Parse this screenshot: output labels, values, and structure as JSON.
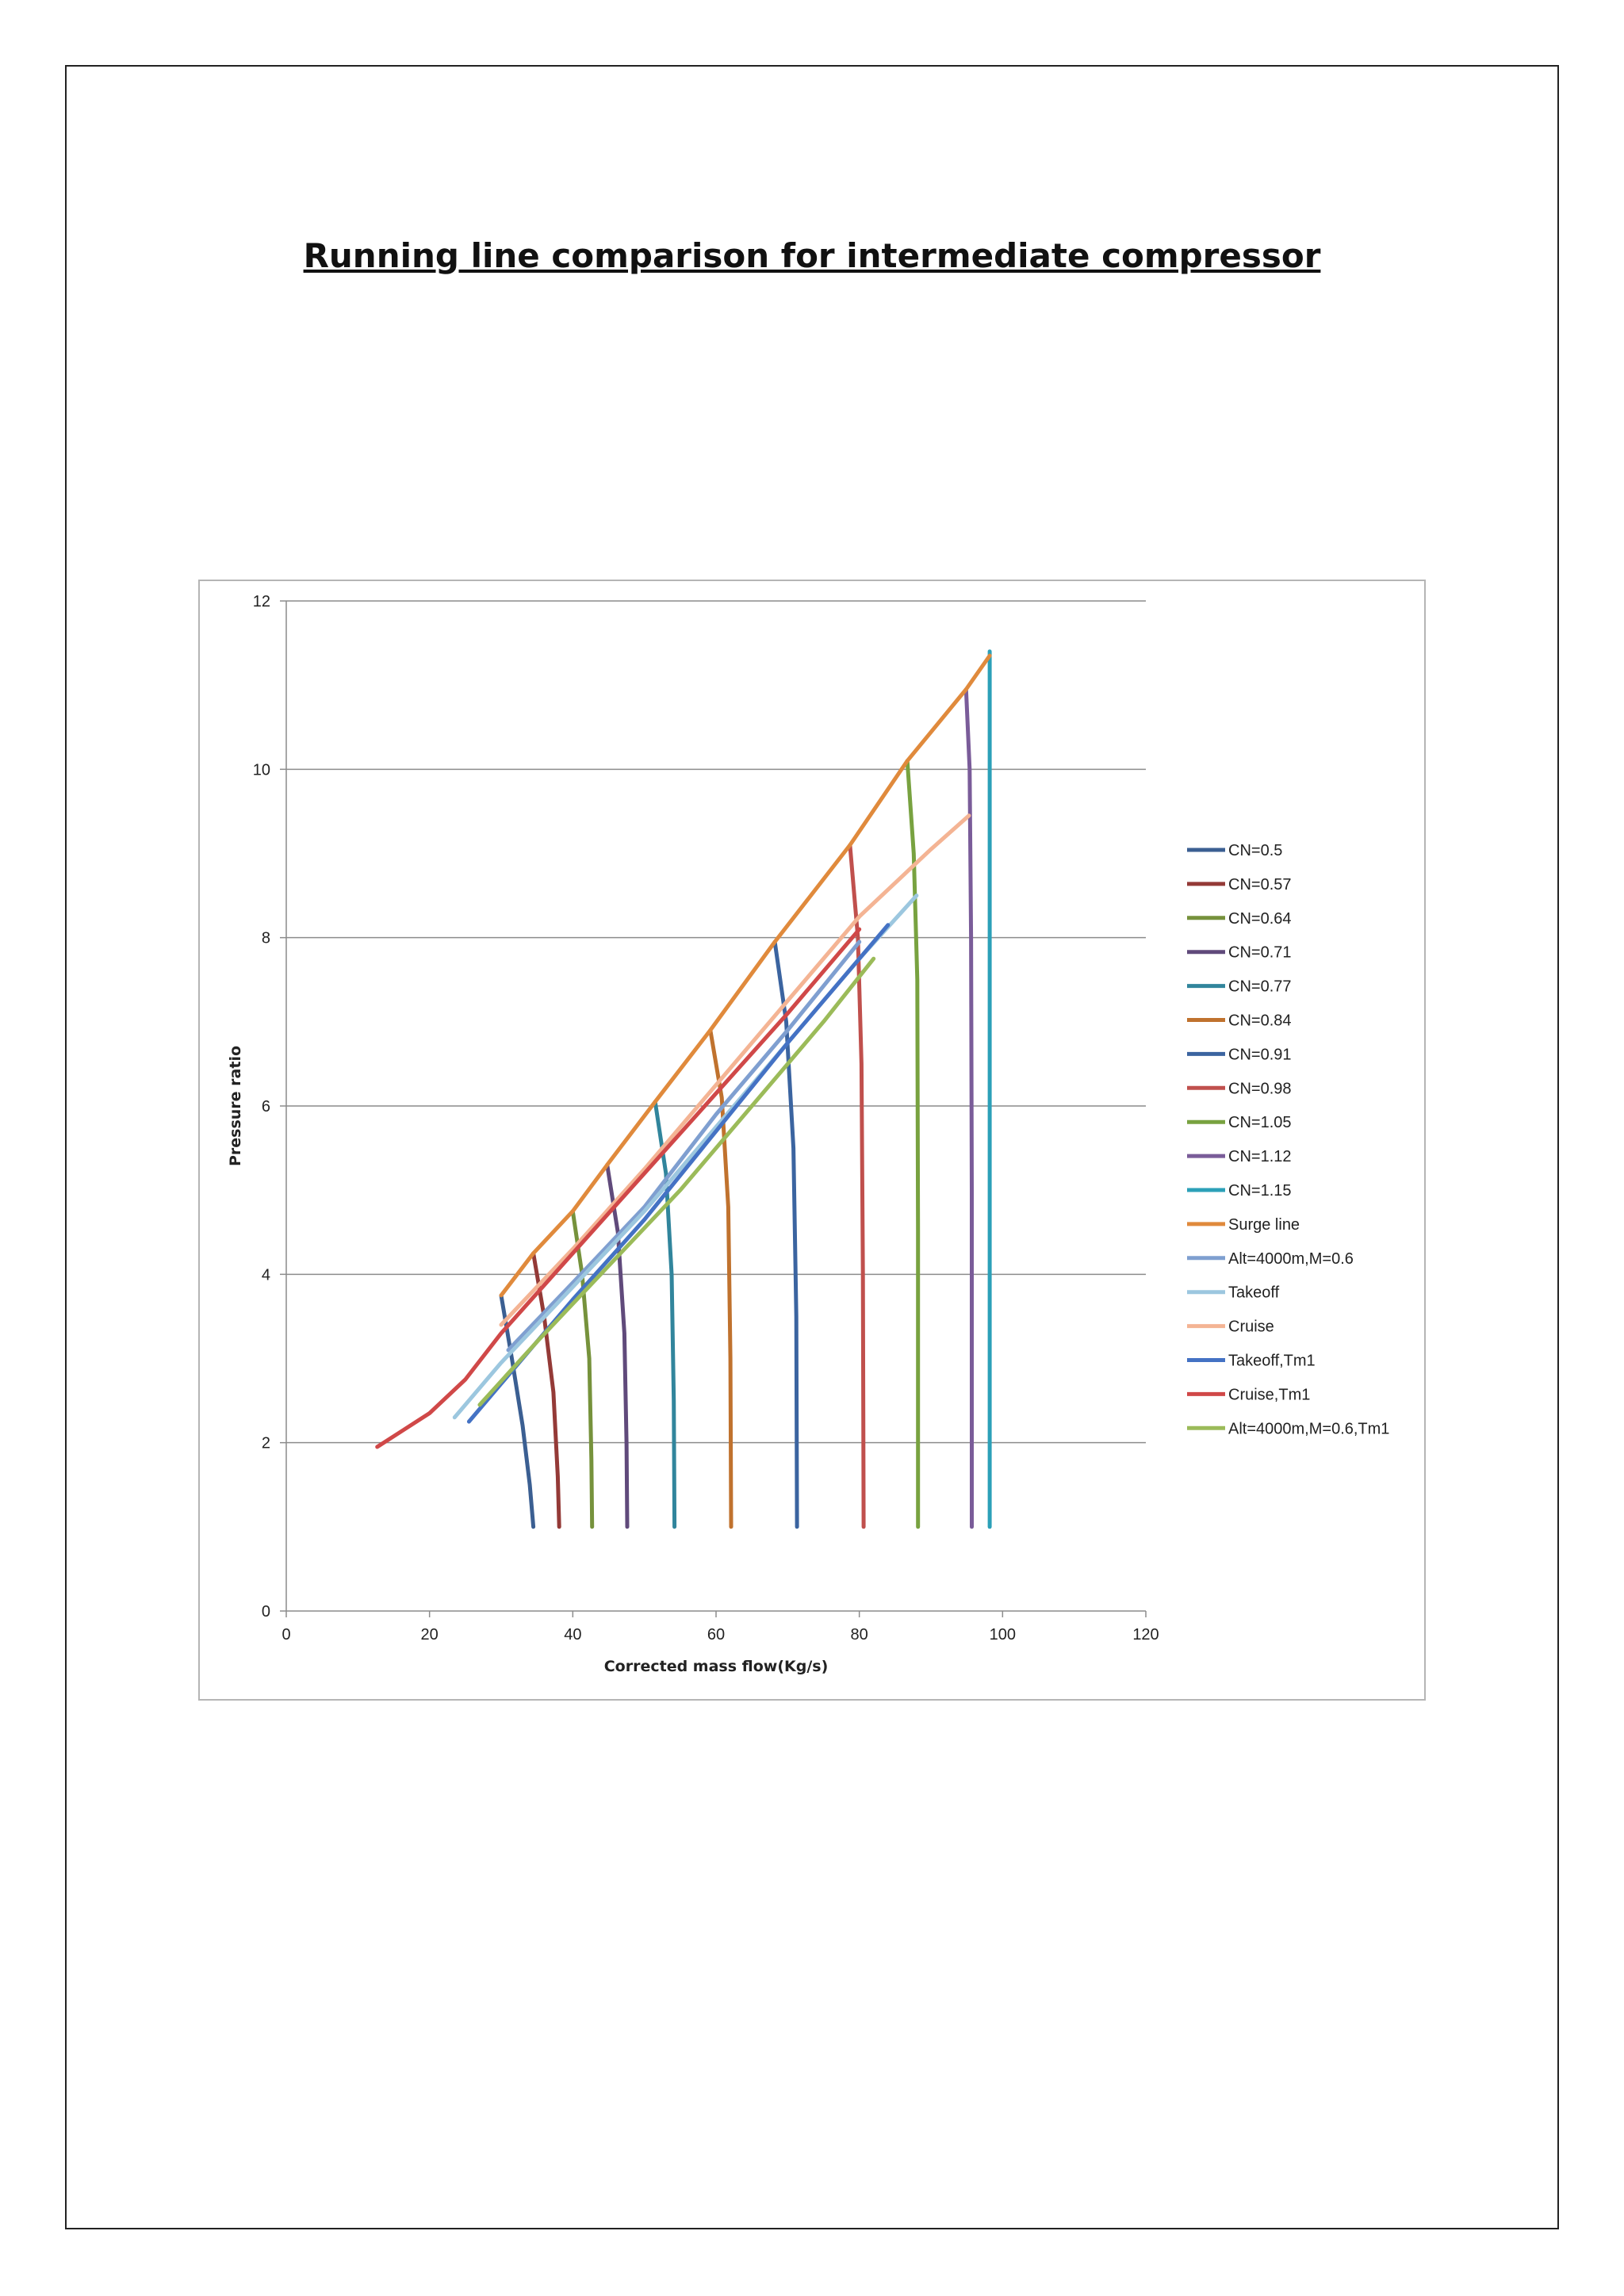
{
  "document": {
    "title": "Running line comparison for intermediate compressor"
  },
  "chart_data": {
    "type": "line",
    "title": "",
    "xlabel": "Corrected mass flow(Kg/s)",
    "ylabel": "Pressure ratio",
    "xlim": [
      0,
      120
    ],
    "ylim": [
      0,
      12
    ],
    "xticks": [
      0,
      20,
      40,
      60,
      80,
      100,
      120
    ],
    "yticks": [
      0,
      2,
      4,
      6,
      8,
      10,
      12
    ],
    "grid": "horizontal",
    "legend_position": "right",
    "series": [
      {
        "name": "CN=0.5",
        "color": "#3b5f92",
        "x": [
          30,
          31.5,
          33,
          34,
          34.5
        ],
        "y": [
          3.75,
          3.0,
          2.2,
          1.5,
          1.0
        ]
      },
      {
        "name": "CN=0.57",
        "color": "#943a37",
        "x": [
          34.5,
          36,
          37.3,
          37.9,
          38.1
        ],
        "y": [
          4.25,
          3.5,
          2.6,
          1.6,
          1.0
        ]
      },
      {
        "name": "CN=0.64",
        "color": "#76923c",
        "x": [
          40,
          41.3,
          42.3,
          42.6,
          42.7
        ],
        "y": [
          4.75,
          4.0,
          3.0,
          1.8,
          1.0
        ]
      },
      {
        "name": "CN=0.71",
        "color": "#604a7b",
        "x": [
          44.8,
          46.3,
          47.2,
          47.5,
          47.6
        ],
        "y": [
          5.3,
          4.5,
          3.3,
          2.0,
          1.0
        ]
      },
      {
        "name": "CN=0.77",
        "color": "#31859c",
        "x": [
          51.5,
          53,
          53.8,
          54.1,
          54.2
        ],
        "y": [
          6.05,
          5.2,
          4.0,
          2.5,
          1.0
        ]
      },
      {
        "name": "CN=0.84",
        "color": "#c0722e",
        "x": [
          59.2,
          60.8,
          61.7,
          62,
          62.1
        ],
        "y": [
          6.9,
          6.1,
          4.8,
          3.0,
          1.0
        ]
      },
      {
        "name": "CN=0.91",
        "color": "#3b64a0",
        "x": [
          68.2,
          69.8,
          70.8,
          71.2,
          71.3
        ],
        "y": [
          7.95,
          7.0,
          5.5,
          3.5,
          1.0
        ]
      },
      {
        "name": "CN=0.98",
        "color": "#c0504d",
        "x": [
          78.7,
          79.8,
          80.3,
          80.5,
          80.6
        ],
        "y": [
          9.1,
          8.0,
          6.5,
          4.0,
          1.0
        ]
      },
      {
        "name": "CN=1.05",
        "color": "#78a240",
        "x": [
          86.7,
          87.6,
          88.1,
          88.2,
          88.2
        ],
        "y": [
          10.1,
          9.0,
          7.5,
          4.5,
          1.0
        ]
      },
      {
        "name": "CN=1.12",
        "color": "#7a5c99",
        "x": [
          94.9,
          95.4,
          95.6,
          95.7,
          95.7
        ],
        "y": [
          10.95,
          10.0,
          8.0,
          5.0,
          1.0
        ]
      },
      {
        "name": "CN=1.15",
        "color": "#2ca0b8",
        "x": [
          98.2,
          98.2,
          98.2
        ],
        "y": [
          11.4,
          6.0,
          1.0
        ]
      },
      {
        "name": "Surge line",
        "color": "#e08a3c",
        "x": [
          30,
          34.5,
          40,
          44.8,
          51.5,
          59.2,
          68.2,
          78.7,
          86.7,
          94.9,
          98.2
        ],
        "y": [
          3.75,
          4.25,
          4.75,
          5.3,
          6.05,
          6.9,
          7.95,
          9.1,
          10.1,
          10.95,
          11.35
        ]
      },
      {
        "name": "Alt=4000m,M=0.6",
        "color": "#7f9fd0",
        "x": [
          31,
          40,
          50,
          60,
          70,
          80
        ],
        "y": [
          3.1,
          3.9,
          4.8,
          5.9,
          6.9,
          7.95
        ]
      },
      {
        "name": "Takeoff",
        "color": "#9cc7df",
        "x": [
          23.5,
          30,
          40,
          50,
          60,
          70,
          80,
          88
        ],
        "y": [
          2.3,
          2.95,
          3.85,
          4.75,
          5.75,
          6.75,
          7.75,
          8.5
        ]
      },
      {
        "name": "Cruise",
        "color": "#f4b494",
        "x": [
          30,
          40,
          50,
          60,
          70,
          80,
          90,
          95.3
        ],
        "y": [
          3.4,
          4.3,
          5.25,
          6.25,
          7.25,
          8.25,
          9.05,
          9.45
        ]
      },
      {
        "name": "Takeoff,Tm1",
        "color": "#4472c4",
        "x": [
          25.5,
          30,
          40,
          50,
          60,
          70,
          80,
          84
        ],
        "y": [
          2.25,
          2.7,
          3.7,
          4.65,
          5.7,
          6.75,
          7.75,
          8.15
        ]
      },
      {
        "name": "Cruise,Tm1",
        "color": "#d04848",
        "x": [
          12.7,
          20,
          25,
          30,
          40,
          50,
          60,
          70,
          80
        ],
        "y": [
          1.95,
          2.35,
          2.75,
          3.3,
          4.25,
          5.2,
          6.15,
          7.1,
          8.1
        ]
      },
      {
        "name": "Alt=4000m,M=0.6,Tm1",
        "color": "#9bbb59",
        "x": [
          27,
          35,
          45,
          55,
          65,
          75,
          82
        ],
        "y": [
          2.45,
          3.2,
          4.1,
          5.0,
          6.0,
          7.0,
          7.75
        ]
      }
    ]
  }
}
